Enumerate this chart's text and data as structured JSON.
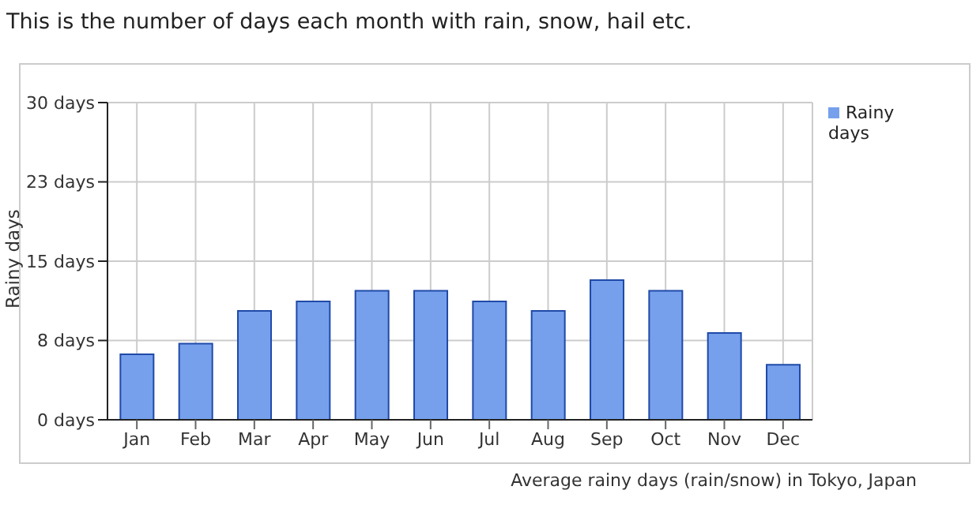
{
  "chart_data": {
    "type": "bar",
    "title": "This is the number of days each month with rain, snow, hail etc.",
    "ylabel": "Rainy days",
    "categories": [
      "Jan",
      "Feb",
      "Mar",
      "Apr",
      "May",
      "Jun",
      "Jul",
      "Aug",
      "Sep",
      "Oct",
      "Nov",
      "Dec"
    ],
    "series": [
      {
        "name": "Rainy days",
        "color": "#76a0ec",
        "values": [
          6.2,
          7.2,
          10.3,
          11.2,
          12.2,
          12.2,
          11.2,
          10.3,
          13.2,
          12.2,
          8.2,
          5.2
        ]
      }
    ],
    "ylim": [
      0,
      30
    ],
    "yticks": [
      {
        "value": 0,
        "label": "0 days"
      },
      {
        "value": 7.5,
        "label": "8 days"
      },
      {
        "value": 15,
        "label": "15 days"
      },
      {
        "value": 22.5,
        "label": "23 days"
      },
      {
        "value": 30,
        "label": "30 days"
      }
    ],
    "grid": true,
    "legend": "top right",
    "annotations": [
      "Average rainy days (rain/snow) in Tokyo, Japan"
    ]
  }
}
